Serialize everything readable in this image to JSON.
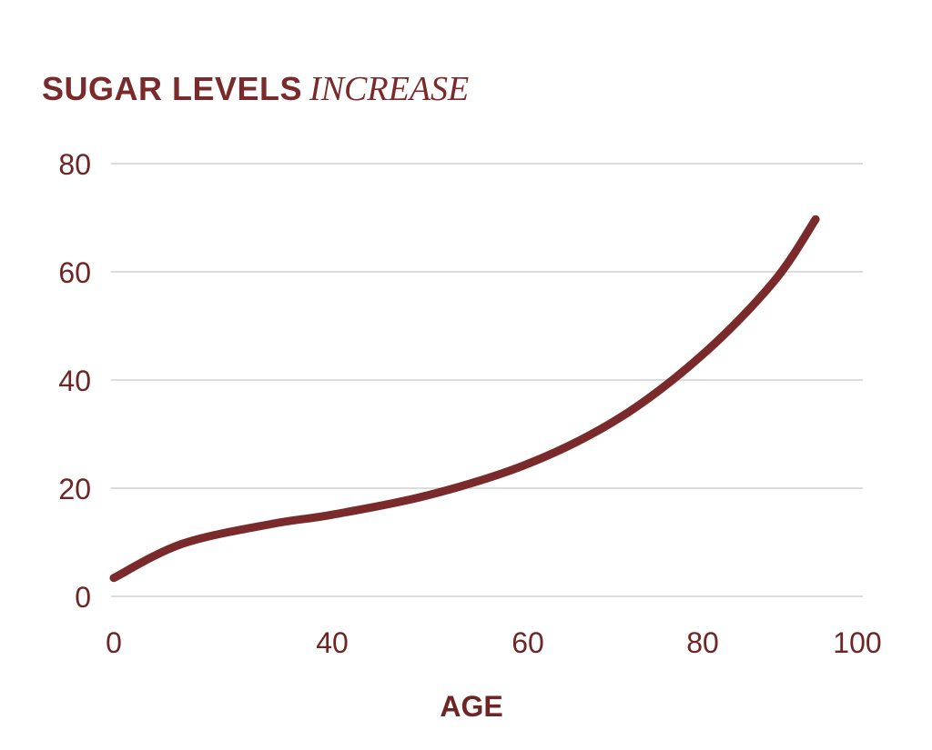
{
  "chart_data": {
    "type": "line",
    "title": "SUGAR LEVELS",
    "title_emphasis": "INCREASE",
    "xlabel": "AGE",
    "ylabel": "",
    "x_ticks": [
      0,
      40,
      60,
      80,
      100
    ],
    "y_ticks": [
      0,
      20,
      40,
      60,
      80
    ],
    "xlim": [
      0,
      100
    ],
    "ylim": [
      0,
      80
    ],
    "grid": "horizontal",
    "line_color": "#7a2a2a",
    "text_color": "#6e2525",
    "grid_color": "#d0d0d0",
    "series": [
      {
        "x": [
          0,
          12.5,
          29,
          40,
          49.8,
          60,
          70.4,
          80,
          89.2,
          94.6
        ],
        "y": [
          3.4,
          9.7,
          13.4,
          15.1,
          18.7,
          24.5,
          32.9,
          44.7,
          58.2,
          69.7
        ]
      }
    ]
  }
}
